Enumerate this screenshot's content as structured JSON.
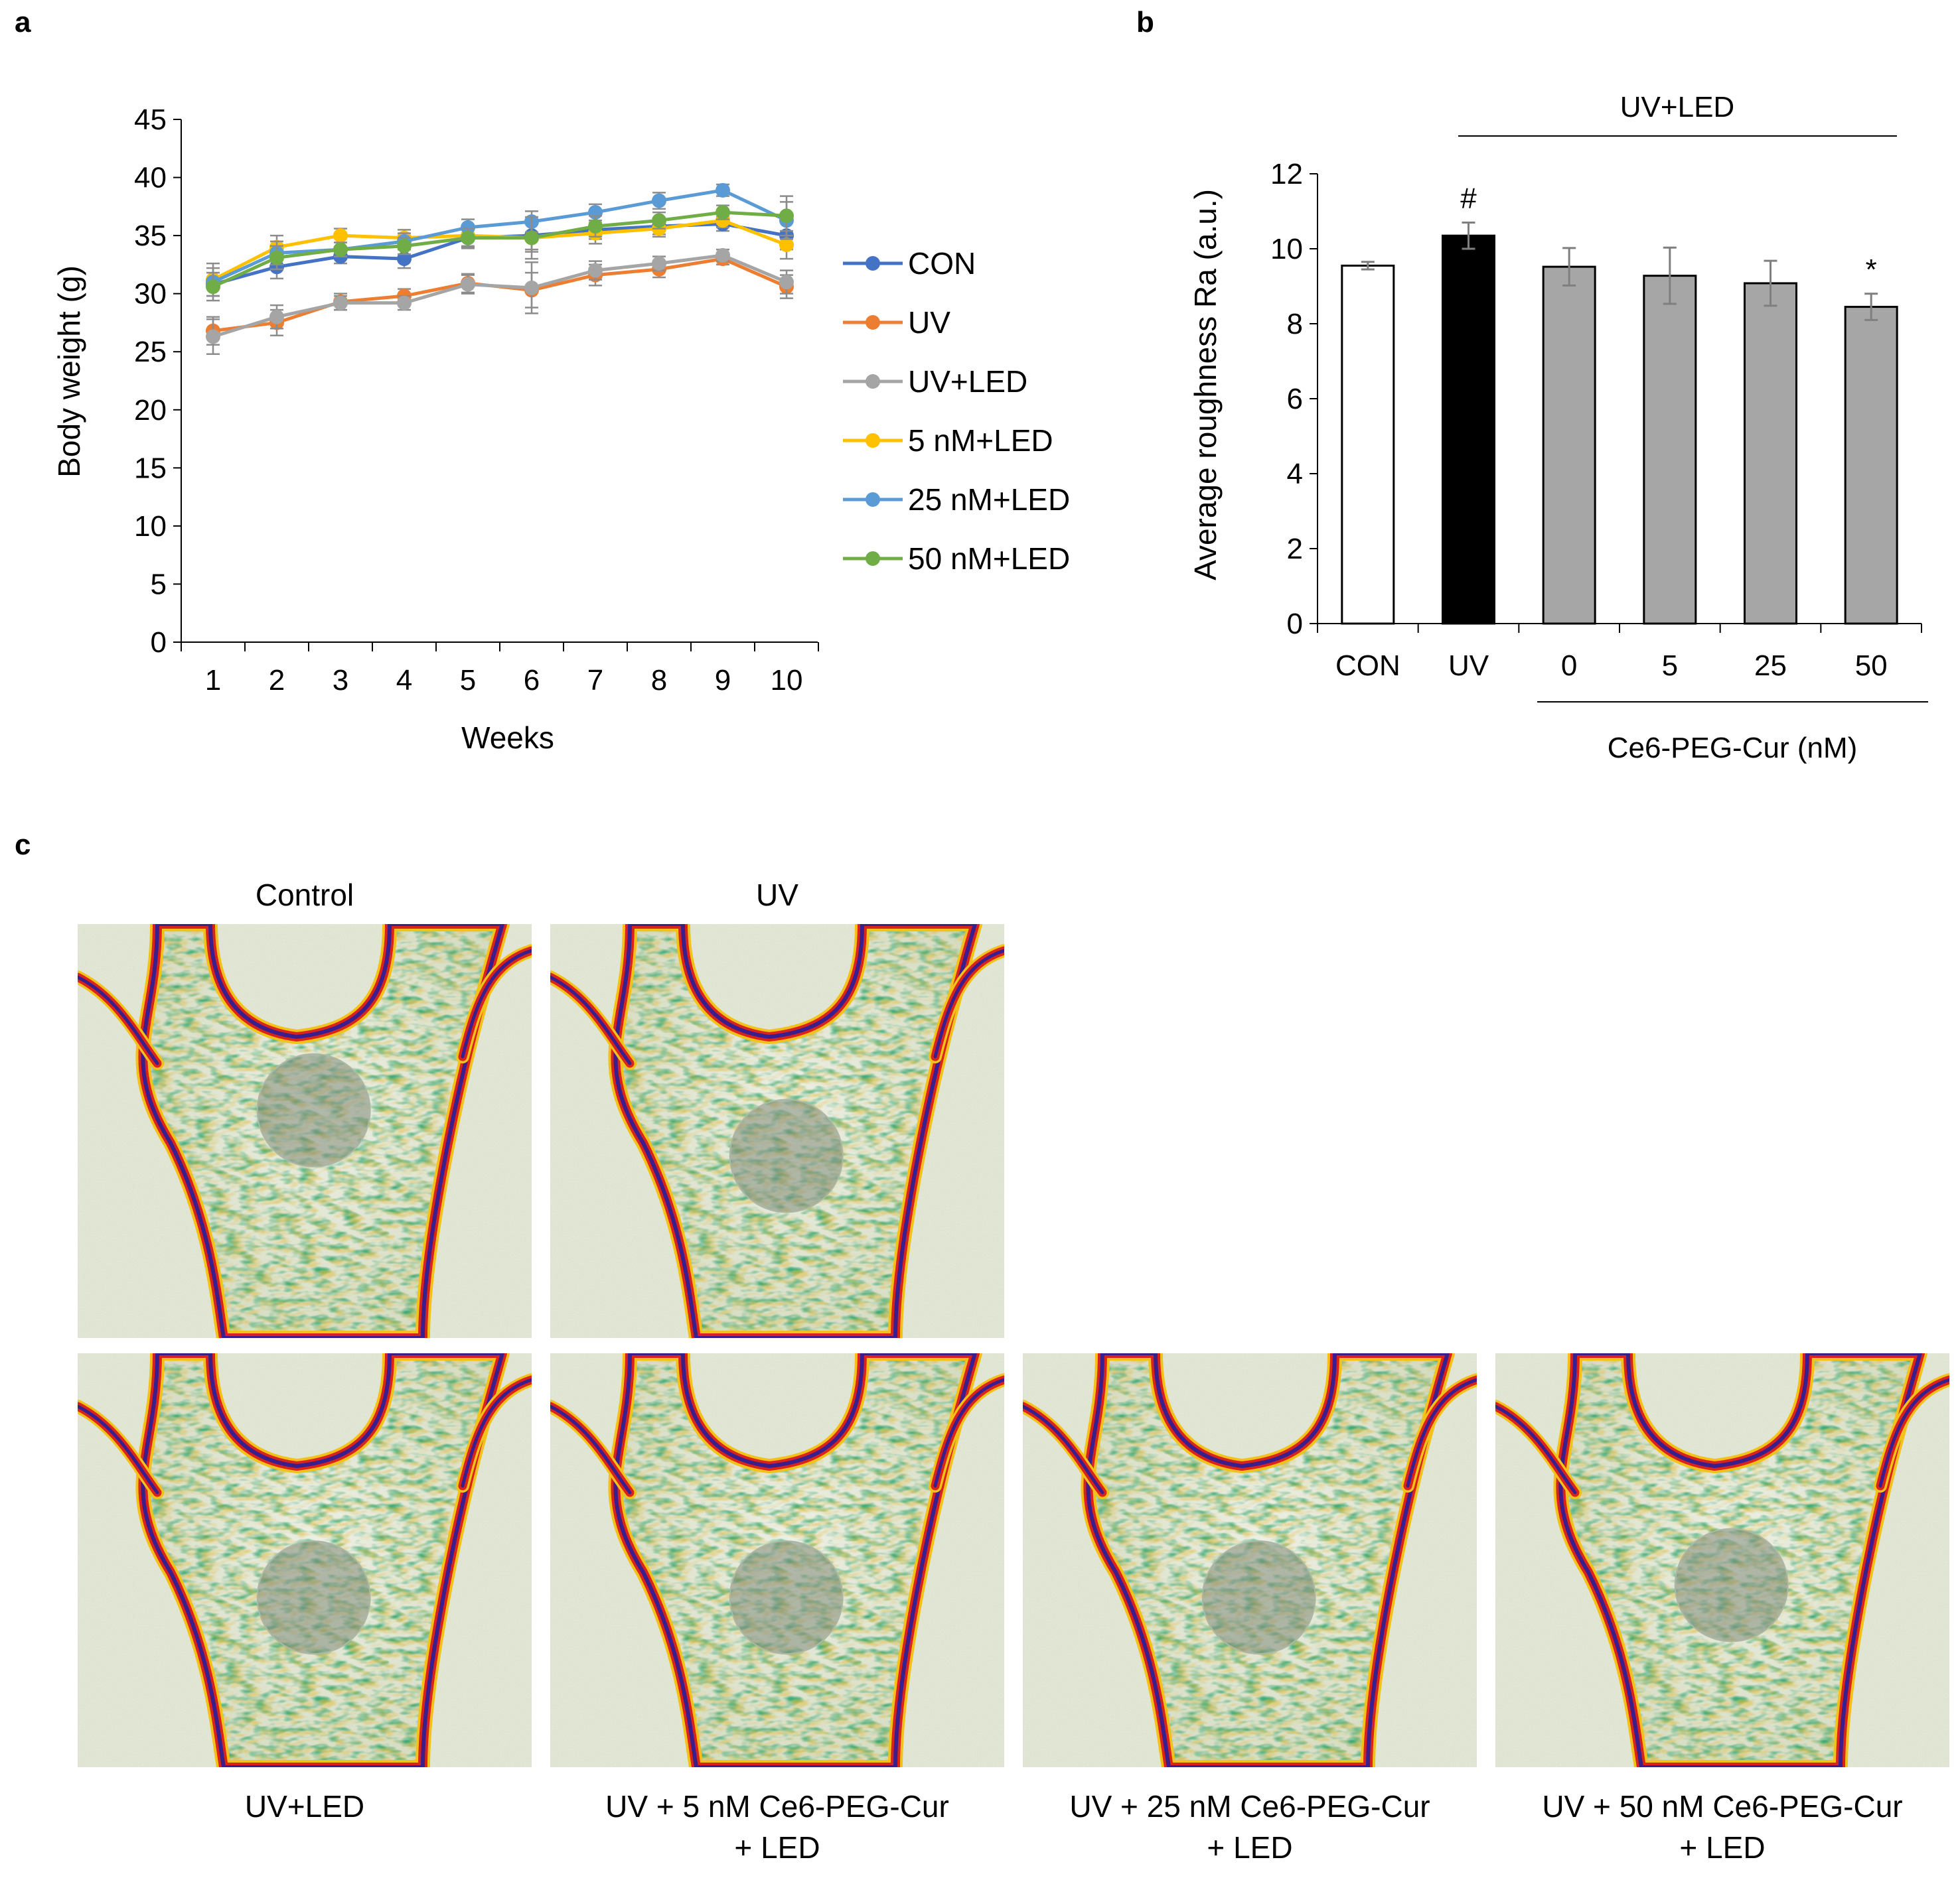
{
  "panels": {
    "a": {
      "letter": "a",
      "chart_data": {
        "type": "line",
        "title": "",
        "xlabel": "Weeks",
        "ylabel": "Body weight (g)",
        "x": [
          1,
          2,
          3,
          4,
          5,
          6,
          7,
          8,
          9,
          10
        ],
        "x_tick_labels": [
          "1",
          "2",
          "3",
          "4",
          "5",
          "6",
          "7",
          "8",
          "9",
          "10"
        ],
        "ylim": [
          0,
          45
        ],
        "y_ticks": [
          0,
          5,
          10,
          15,
          20,
          25,
          30,
          35,
          40,
          45
        ],
        "y_tick_labels": [
          "0",
          "5",
          "10",
          "15",
          "20",
          "25",
          "30",
          "35",
          "40",
          "45"
        ],
        "legend_position": "right",
        "grid": false,
        "series": [
          {
            "name": "CON",
            "color": "#4472C4",
            "values": [
              30.8,
              32.3,
              33.2,
              33.0,
              34.8,
              35.0,
              35.5,
              35.8,
              36.0,
              35.0
            ],
            "errors": [
              1.0,
              1.0,
              0.6,
              0.8,
              0.9,
              1.2,
              0.8,
              0.7,
              0.6,
              1.2
            ]
          },
          {
            "name": "UV",
            "color": "#ED7D31",
            "values": [
              26.8,
              27.5,
              29.3,
              29.8,
              30.9,
              30.3,
              31.6,
              32.1,
              33.0,
              30.6
            ],
            "errors": [
              1.2,
              1.1,
              0.7,
              0.6,
              0.8,
              1.5,
              0.9,
              0.7,
              0.5,
              1.0
            ]
          },
          {
            "name": "UV+LED",
            "color": "#A5A5A5",
            "values": [
              26.3,
              28.0,
              29.2,
              29.2,
              30.8,
              30.5,
              32.0,
              32.6,
              33.3,
              31.0
            ],
            "errors": [
              1.5,
              1.0,
              0.6,
              0.6,
              0.8,
              2.2,
              0.8,
              0.6,
              0.5,
              1.0
            ]
          },
          {
            "name": "5 nM+LED",
            "color": "#FFC000",
            "values": [
              31.2,
              34.0,
              35.0,
              34.8,
              35.0,
              34.8,
              35.2,
              35.6,
              36.3,
              34.2
            ],
            "errors": [
              1.4,
              1.0,
              0.6,
              0.7,
              0.9,
              1.2,
              0.9,
              0.7,
              0.6,
              1.2
            ]
          },
          {
            "name": "25 nM+LED",
            "color": "#5B9BD5",
            "values": [
              31.0,
              33.5,
              33.8,
              34.5,
              35.7,
              36.2,
              37.0,
              38.0,
              38.9,
              36.3
            ],
            "errors": [
              1.2,
              1.0,
              0.6,
              0.7,
              0.7,
              0.9,
              0.7,
              0.7,
              0.5,
              1.6
            ]
          },
          {
            "name": "50 nM+LED",
            "color": "#70AD47",
            "values": [
              30.6,
              33.1,
              33.8,
              34.1,
              34.8,
              34.8,
              35.8,
              36.3,
              37.0,
              36.7
            ],
            "errors": [
              1.2,
              1.0,
              0.6,
              0.7,
              0.8,
              1.8,
              0.9,
              0.7,
              0.6,
              1.7
            ]
          }
        ]
      }
    },
    "b": {
      "letter": "b",
      "chart_data": {
        "type": "bar",
        "title": "",
        "xlabel": "",
        "ylabel": "Average roughness Ra (a.u.)",
        "categories": [
          "CON",
          "UV",
          "0",
          "5",
          "25",
          "50"
        ],
        "values": [
          9.55,
          10.35,
          9.52,
          9.28,
          9.08,
          8.45
        ],
        "errors": [
          0.1,
          0.35,
          0.5,
          0.75,
          0.6,
          0.35
        ],
        "bar_colors": [
          "#FFFFFF",
          "#000000",
          "#A6A6A6",
          "#A6A6A6",
          "#A6A6A6",
          "#A6A6A6"
        ],
        "significance": [
          "",
          "#",
          "",
          "",
          "",
          "*"
        ],
        "ylim": [
          0,
          12
        ],
        "y_ticks": [
          0,
          2,
          4,
          6,
          8,
          10,
          12
        ],
        "y_tick_labels": [
          "0",
          "2",
          "4",
          "6",
          "8",
          "10",
          "12"
        ],
        "group_label_top": "UV+LED",
        "group_label_bottom": "Ce6-PEG-Cur (nM)",
        "grid": false
      }
    },
    "c": {
      "letter": "c",
      "images": [
        {
          "label_lines": [
            "Control"
          ],
          "circle": "upper"
        },
        {
          "label_lines": [
            "UV"
          ],
          "circle": "middle"
        },
        {
          "label_lines": [
            "UV+LED"
          ],
          "circle": "lower"
        },
        {
          "label_lines": [
            "UV + 5 nM Ce6-PEG-Cur",
            "+ LED"
          ],
          "circle": "lower"
        },
        {
          "label_lines": [
            "UV + 25 nM Ce6-PEG-Cur",
            "+ LED"
          ],
          "circle": "lower"
        },
        {
          "label_lines": [
            "UV + 50 nM Ce6-PEG-Cur",
            "+ LED"
          ],
          "circle": "middle"
        }
      ]
    }
  }
}
